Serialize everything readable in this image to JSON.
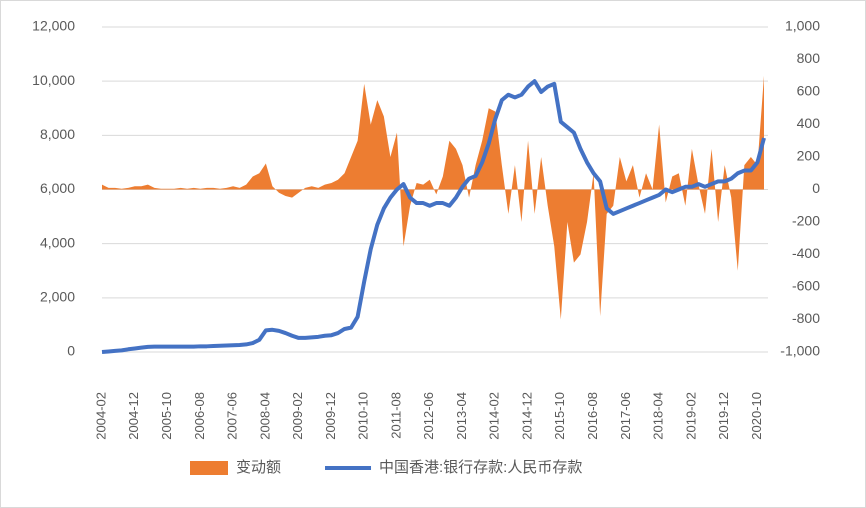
{
  "chart_data": {
    "type": "combo",
    "categories": [
      "2004-02",
      null,
      null,
      null,
      null,
      "2004-12",
      null,
      null,
      null,
      null,
      "2005-10",
      null,
      null,
      null,
      null,
      "2006-08",
      null,
      null,
      null,
      null,
      "2007-06",
      null,
      null,
      null,
      null,
      "2008-04",
      null,
      null,
      null,
      null,
      "2009-02",
      null,
      null,
      null,
      null,
      "2009-12",
      null,
      null,
      null,
      null,
      "2010-10",
      null,
      null,
      null,
      null,
      "2011-08",
      null,
      null,
      null,
      null,
      "2012-06",
      null,
      null,
      null,
      null,
      "2013-04",
      null,
      null,
      null,
      null,
      "2014-02",
      null,
      null,
      null,
      null,
      "2014-12",
      null,
      null,
      null,
      null,
      "2015-10",
      null,
      null,
      null,
      null,
      "2016-08",
      null,
      null,
      null,
      null,
      "2017-06",
      null,
      null,
      null,
      null,
      "2018-04",
      null,
      null,
      null,
      null,
      "2019-02",
      null,
      null,
      null,
      null,
      "2019-12",
      null,
      null,
      null,
      null,
      "2020-10",
      null
    ],
    "series": [
      {
        "name": "变动额",
        "type": "area",
        "axis": "y2",
        "color": "#ed7d31",
        "values": [
          30,
          10,
          10,
          5,
          10,
          20,
          20,
          30,
          10,
          5,
          5,
          5,
          10,
          5,
          10,
          5,
          10,
          10,
          5,
          10,
          20,
          10,
          30,
          80,
          100,
          160,
          20,
          -20,
          -40,
          -50,
          -20,
          10,
          20,
          10,
          30,
          40,
          60,
          100,
          200,
          300,
          650,
          400,
          550,
          450,
          200,
          350,
          -350,
          -100,
          40,
          30,
          60,
          -30,
          80,
          300,
          250,
          150,
          -50,
          150,
          300,
          500,
          480,
          150,
          -150,
          150,
          -200,
          300,
          -150,
          200,
          -100,
          -350,
          -800,
          -200,
          -450,
          -400,
          -200,
          100,
          -780,
          -150,
          -100,
          200,
          50,
          150,
          -50,
          100,
          0,
          400,
          -80,
          80,
          100,
          -100,
          250,
          30,
          -150,
          250,
          -200,
          150,
          -50,
          -500,
          150,
          200,
          150,
          700
        ]
      },
      {
        "name": "中国香港:银行存款:人民币存款",
        "type": "line",
        "axis": "y",
        "color": "#4472c4",
        "values": [
          0,
          20,
          40,
          60,
          100,
          130,
          160,
          190,
          200,
          200,
          200,
          200,
          200,
          200,
          200,
          210,
          210,
          220,
          230,
          240,
          250,
          260,
          280,
          330,
          450,
          800,
          820,
          780,
          700,
          600,
          520,
          520,
          540,
          560,
          600,
          620,
          700,
          850,
          900,
          1300,
          2600,
          3800,
          4700,
          5300,
          5700,
          6000,
          6200,
          5700,
          5500,
          5500,
          5400,
          5500,
          5500,
          5400,
          5700,
          6100,
          6400,
          6500,
          7000,
          7700,
          8600,
          9300,
          9500,
          9400,
          9500,
          9800,
          10000,
          9600,
          9800,
          9900,
          8500,
          8300,
          8100,
          7500,
          7000,
          6600,
          6300,
          5300,
          5100,
          5200,
          5300,
          5400,
          5500,
          5600,
          5700,
          5800,
          6000,
          5900,
          6000,
          6100,
          6100,
          6200,
          6100,
          6200,
          6300,
          6300,
          6400,
          6600,
          6700,
          6700,
          7000,
          7900
        ]
      }
    ],
    "ylim": [
      0,
      12000
    ],
    "yticks": [
      0,
      {
        "value": 2000,
        "label": "2,000"
      },
      {
        "value": 4000,
        "label": "4,000"
      },
      {
        "value": 6000,
        "label": "6,000"
      },
      {
        "value": 8000,
        "label": "8,000"
      },
      {
        "value": 10000,
        "label": "10,000"
      },
      {
        "value": 12000,
        "label": "12,000"
      }
    ],
    "y2lim": [
      -1000,
      1000
    ],
    "y2ticks": [
      {
        "value": -1000,
        "label": "-1,000"
      },
      -800,
      -600,
      -400,
      -200,
      0,
      200,
      400,
      600,
      800,
      {
        "value": 1000,
        "label": "1,000"
      }
    ],
    "grid": true,
    "legend": "bottom"
  }
}
